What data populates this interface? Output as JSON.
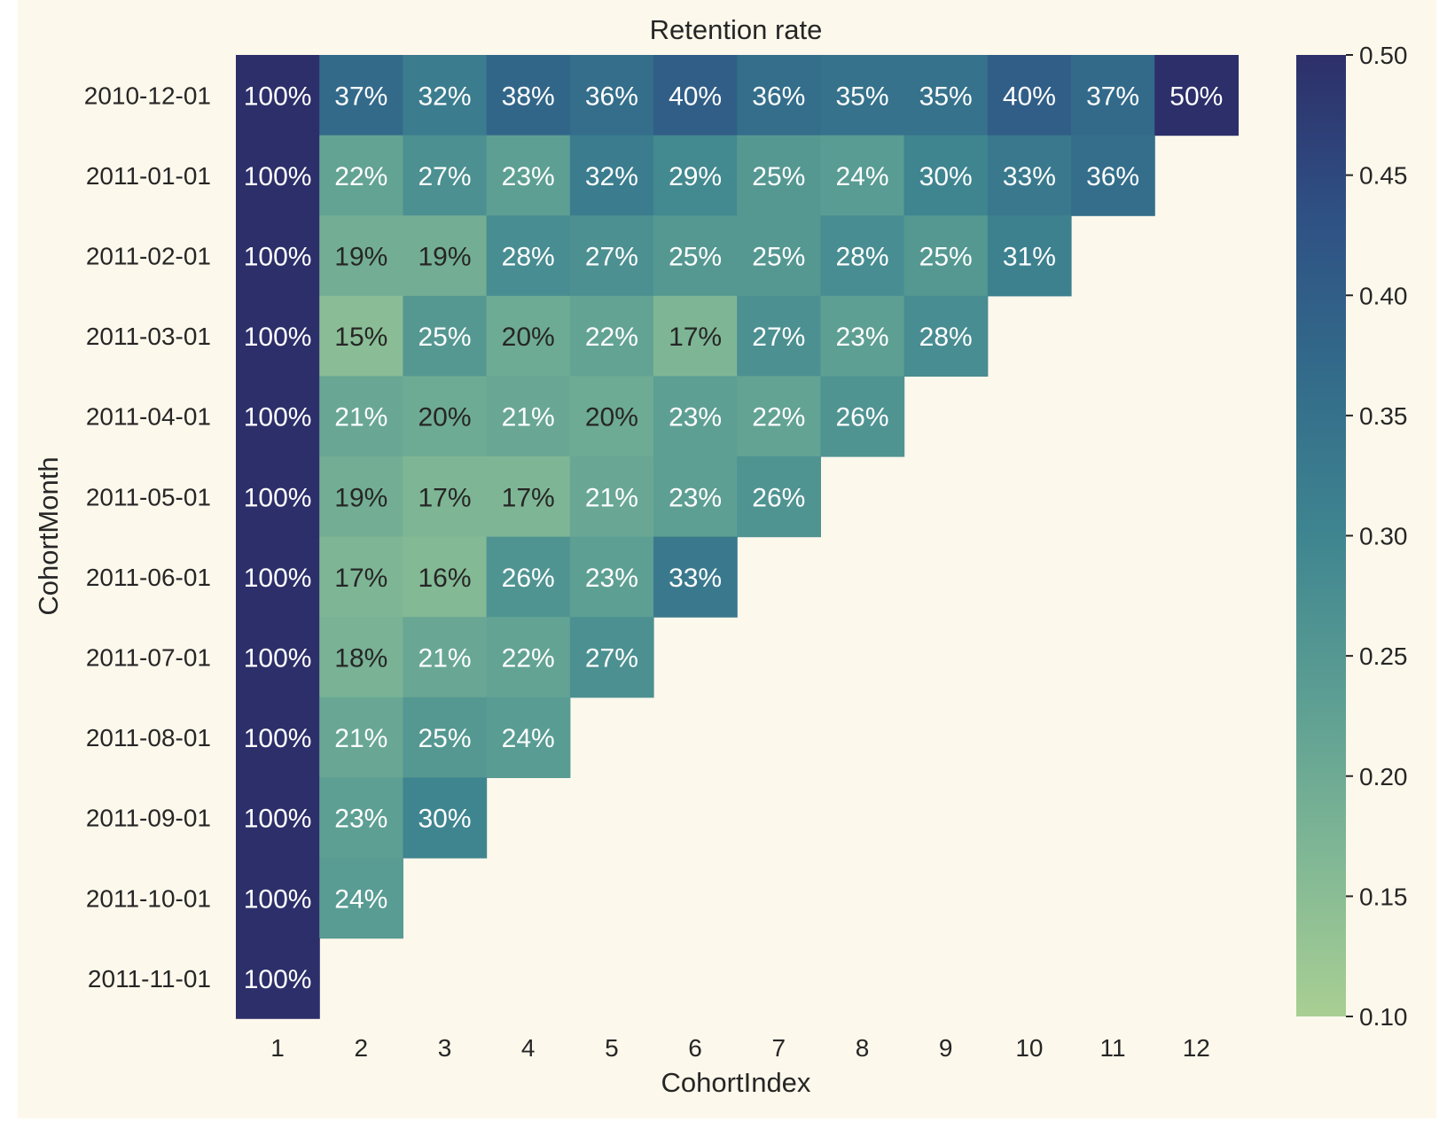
{
  "chart_data": {
    "type": "heatmap",
    "title": "Retention rate",
    "xlabel": "CohortIndex",
    "ylabel": "CohortMonth",
    "x_categories": [
      "1",
      "2",
      "3",
      "4",
      "5",
      "6",
      "7",
      "8",
      "9",
      "10",
      "11",
      "12"
    ],
    "y_categories": [
      "2010-12-01",
      "2011-01-01",
      "2011-02-01",
      "2011-03-01",
      "2011-04-01",
      "2011-05-01",
      "2011-06-01",
      "2011-07-01",
      "2011-08-01",
      "2011-09-01",
      "2011-10-01",
      "2011-11-01"
    ],
    "values": [
      [
        1.0,
        0.37,
        0.32,
        0.38,
        0.36,
        0.4,
        0.36,
        0.35,
        0.35,
        0.4,
        0.37,
        0.5
      ],
      [
        1.0,
        0.22,
        0.27,
        0.23,
        0.32,
        0.29,
        0.25,
        0.24,
        0.3,
        0.33,
        0.36
      ],
      [
        1.0,
        0.19,
        0.19,
        0.28,
        0.27,
        0.25,
        0.25,
        0.28,
        0.25,
        0.31
      ],
      [
        1.0,
        0.15,
        0.25,
        0.2,
        0.22,
        0.17,
        0.27,
        0.23,
        0.28
      ],
      [
        1.0,
        0.21,
        0.2,
        0.21,
        0.2,
        0.23,
        0.22,
        0.26
      ],
      [
        1.0,
        0.19,
        0.17,
        0.17,
        0.21,
        0.23,
        0.26
      ],
      [
        1.0,
        0.17,
        0.16,
        0.26,
        0.23,
        0.33
      ],
      [
        1.0,
        0.18,
        0.21,
        0.22,
        0.27
      ],
      [
        1.0,
        0.21,
        0.25,
        0.24
      ],
      [
        1.0,
        0.23,
        0.3
      ],
      [
        1.0,
        0.24
      ],
      [
        1.0
      ]
    ],
    "annotations": [
      [
        "100%",
        "37%",
        "32%",
        "38%",
        "36%",
        "40%",
        "36%",
        "35%",
        "35%",
        "40%",
        "37%",
        "50%"
      ],
      [
        "100%",
        "22%",
        "27%",
        "23%",
        "32%",
        "29%",
        "25%",
        "24%",
        "30%",
        "33%",
        "36%"
      ],
      [
        "100%",
        "19%",
        "19%",
        "28%",
        "27%",
        "25%",
        "25%",
        "28%",
        "25%",
        "31%"
      ],
      [
        "100%",
        "15%",
        "25%",
        "20%",
        "22%",
        "17%",
        "27%",
        "23%",
        "28%"
      ],
      [
        "100%",
        "21%",
        "20%",
        "21%",
        "20%",
        "23%",
        "22%",
        "26%"
      ],
      [
        "100%",
        "19%",
        "17%",
        "17%",
        "21%",
        "23%",
        "26%"
      ],
      [
        "100%",
        "17%",
        "16%",
        "26%",
        "23%",
        "33%"
      ],
      [
        "100%",
        "18%",
        "21%",
        "22%",
        "27%"
      ],
      [
        "100%",
        "21%",
        "25%",
        "24%"
      ],
      [
        "100%",
        "23%",
        "30%"
      ],
      [
        "100%",
        "24%"
      ],
      [
        "100%"
      ]
    ],
    "colorbar": {
      "min": 0.1,
      "max": 0.5,
      "ticks": [
        "0.10",
        "0.15",
        "0.20",
        "0.25",
        "0.30",
        "0.35",
        "0.40",
        "0.45",
        "0.50"
      ]
    },
    "colormap_stops": [
      "#a9cf93",
      "#80b795",
      "#5c9e93",
      "#3f8590",
      "#336b8a",
      "#2f5184",
      "#2d2f6a"
    ],
    "background_color": "#fdf8ec"
  }
}
